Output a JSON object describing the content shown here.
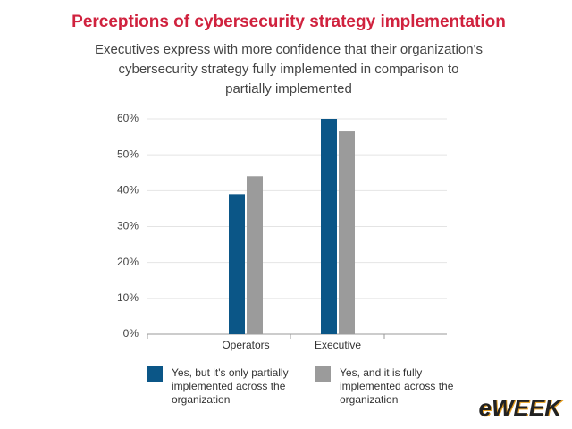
{
  "chart_data": {
    "type": "bar",
    "title": "Perceptions of cybersecurity strategy implementation",
    "subtitle": [
      "Executives express with more confidence that their organization's",
      "cybersecurity strategy fully implemented in comparison to",
      "partially implemented"
    ],
    "categories": [
      "Operators",
      "Executive"
    ],
    "series": [
      {
        "name": "Yes, but it's only partially implemented across the organization",
        "color": "#0b5687",
        "values": [
          39,
          60
        ]
      },
      {
        "name": "Yes, and it is fully implemented across the organization",
        "color": "#9b9b9b",
        "values": [
          44,
          56.5
        ]
      }
    ],
    "ylim": [
      0,
      60
    ],
    "yticks": [
      {
        "value": 0,
        "label": "0%"
      },
      {
        "value": 10,
        "label": "10%"
      },
      {
        "value": 20,
        "label": "20%"
      },
      {
        "value": 30,
        "label": "30%"
      },
      {
        "value": 40,
        "label": "40%"
      },
      {
        "value": 50,
        "label": "50%"
      },
      {
        "value": 60,
        "label": "60%"
      }
    ],
    "grid": true,
    "legend": "bottom",
    "watermark": "eWEEK"
  }
}
